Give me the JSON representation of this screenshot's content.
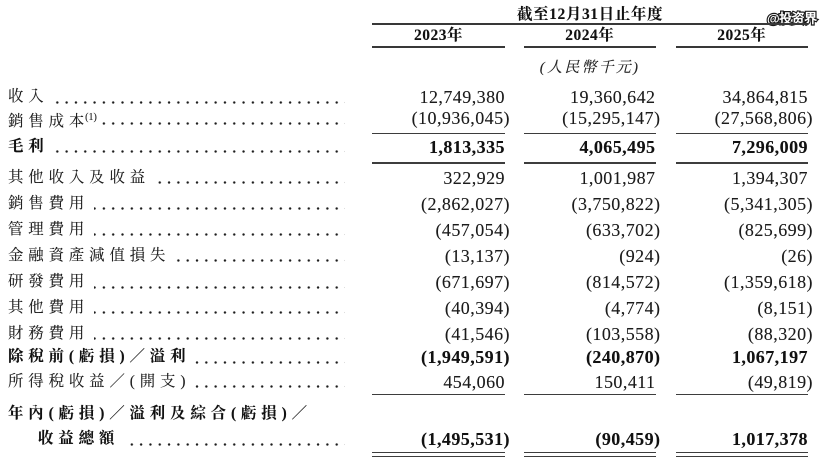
{
  "watermark": {
    "text": "@投资界"
  },
  "table": {
    "period_header": "截至12月31日止年度",
    "columns": [
      "2023年",
      "2024年",
      "2025年"
    ],
    "unit_note": "(人民幣千元)",
    "rows": [
      {
        "label": "收入",
        "values": [
          "12,749,380",
          "19,360,642",
          "34,864,815"
        ]
      },
      {
        "label": "銷售成本",
        "sup": "(1)",
        "values": [
          "(10,936,045)",
          "(15,295,147)",
          "(27,568,806)"
        ],
        "rule_below": "single"
      },
      {
        "label": "毛利",
        "bold": true,
        "values": [
          "1,813,335",
          "4,065,495",
          "7,296,009"
        ],
        "rule_below": "single"
      },
      {
        "label": "其他收入及收益",
        "values": [
          "322,929",
          "1,001,987",
          "1,394,307"
        ]
      },
      {
        "label": "銷售費用",
        "values": [
          "(2,862,027)",
          "(3,750,822)",
          "(5,341,305)"
        ]
      },
      {
        "label": "管理費用",
        "values": [
          "(457,054)",
          "(633,702)",
          "(825,699)"
        ]
      },
      {
        "label": "金融資產減值損失",
        "values": [
          "(13,137)",
          "(924)",
          "(26)"
        ]
      },
      {
        "label": "研發費用",
        "values": [
          "(671,697)",
          "(814,572)",
          "(1,359,618)"
        ]
      },
      {
        "label": "其他費用",
        "values": [
          "(40,394)",
          "(4,774)",
          "(8,151)"
        ]
      },
      {
        "label": "財務費用",
        "values": [
          "(41,546)",
          "(103,558)",
          "(88,320)"
        ]
      },
      {
        "label": "除稅前(虧損)／溢利",
        "bold": true,
        "values": [
          "(1,949,591)",
          "(240,870)",
          "1,067,197"
        ]
      },
      {
        "label": "所得稅收益／(開支)",
        "values": [
          "454,060",
          "150,411",
          "(49,819)"
        ],
        "rule_below": "single"
      },
      {
        "label": "年內(虧損)／溢利及綜合(虧損)／",
        "label2": "收益總額",
        "bold": true,
        "values": [
          "(1,495,531)",
          "(90,459)",
          "1,017,378"
        ],
        "rule_below": "double"
      }
    ]
  }
}
